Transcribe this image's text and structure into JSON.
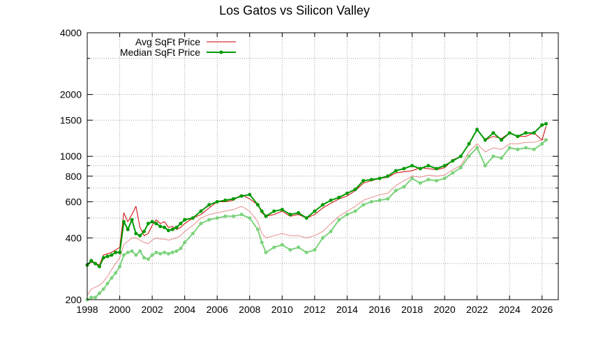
{
  "chart_data": {
    "type": "line",
    "title": "Los Gatos vs Silicon Valley",
    "xlabel": "",
    "ylabel": "",
    "x_range": [
      1998,
      2027
    ],
    "ylim": [
      200,
      4000
    ],
    "y_scale": "log",
    "grid": true,
    "legend_position": "top-left",
    "x_ticks": [
      "1998",
      "2000",
      "2002",
      "2004",
      "2006",
      "2008",
      "2010",
      "2012",
      "2014",
      "2016",
      "2018",
      "2020",
      "2022",
      "2024",
      "2026"
    ],
    "y_ticks": [
      "200",
      "400",
      "600",
      "800",
      "1000",
      "1500",
      "2000",
      "4000"
    ],
    "y_tick_values": [
      200,
      400,
      600,
      800,
      1000,
      1500,
      2000,
      4000
    ],
    "y_minor_ticks": [
      300,
      500,
      700,
      900,
      3000
    ],
    "series": [
      {
        "name": "Avg SqFt Price",
        "group": "Los Gatos",
        "color": "#cc0000",
        "marker": false,
        "x": [
          1998.0,
          1998.25,
          1998.5,
          1998.75,
          1999.0,
          1999.25,
          1999.5,
          1999.75,
          2000.0,
          2000.25,
          2000.5,
          2000.75,
          2001.0,
          2001.25,
          2001.5,
          2001.75,
          2002.0,
          2002.25,
          2002.5,
          2002.75,
          2003.0,
          2003.25,
          2003.5,
          2003.75,
          2004.0,
          2004.5,
          2005.0,
          2005.5,
          2006.0,
          2006.5,
          2007.0,
          2007.5,
          2008.0,
          2008.5,
          2008.75,
          2009.0,
          2009.5,
          2010.0,
          2010.5,
          2011.0,
          2011.5,
          2012.0,
          2012.5,
          2013.0,
          2013.5,
          2014.0,
          2014.5,
          2015.0,
          2015.5,
          2016.0,
          2016.5,
          2017.0,
          2017.5,
          2018.0,
          2018.5,
          2019.0,
          2019.5,
          2020.0,
          2020.5,
          2021.0,
          2021.5,
          2022.0,
          2022.5,
          2023.0,
          2023.5,
          2024.0,
          2024.5,
          2025.0,
          2025.5,
          2026.0,
          2026.25
        ],
        "values": [
          295,
          305,
          300,
          295,
          330,
          335,
          340,
          350,
          360,
          530,
          480,
          520,
          570,
          450,
          410,
          420,
          460,
          490,
          470,
          480,
          450,
          455,
          440,
          450,
          470,
          500,
          520,
          560,
          600,
          600,
          610,
          650,
          620,
          580,
          530,
          510,
          520,
          540,
          510,
          520,
          500,
          520,
          560,
          590,
          620,
          640,
          680,
          740,
          760,
          780,
          790,
          830,
          840,
          850,
          880,
          870,
          860,
          880,
          960,
          1000,
          1150,
          1350,
          1200,
          1250,
          1220,
          1300,
          1250,
          1250,
          1300,
          1200,
          1400
        ]
      },
      {
        "name": "Median SqFt Price",
        "group": "Los Gatos",
        "color": "#009900",
        "marker": true,
        "x": [
          1998.0,
          1998.25,
          1998.5,
          1998.75,
          1999.0,
          1999.25,
          1999.5,
          1999.75,
          2000.0,
          2000.25,
          2000.5,
          2000.75,
          2001.0,
          2001.25,
          2001.5,
          2001.75,
          2002.0,
          2002.25,
          2002.5,
          2002.75,
          2003.0,
          2003.25,
          2003.5,
          2003.75,
          2004.0,
          2004.5,
          2005.0,
          2005.5,
          2006.0,
          2006.5,
          2007.0,
          2007.5,
          2008.0,
          2008.5,
          2008.75,
          2009.0,
          2009.5,
          2010.0,
          2010.5,
          2011.0,
          2011.5,
          2012.0,
          2012.5,
          2013.0,
          2013.5,
          2014.0,
          2014.5,
          2015.0,
          2015.5,
          2016.0,
          2016.5,
          2017.0,
          2017.5,
          2018.0,
          2018.5,
          2019.0,
          2019.5,
          2020.0,
          2020.5,
          2021.0,
          2021.5,
          2022.0,
          2022.5,
          2023.0,
          2023.5,
          2024.0,
          2024.5,
          2025.0,
          2025.5,
          2026.0,
          2026.25
        ],
        "values": [
          295,
          310,
          300,
          290,
          320,
          325,
          330,
          340,
          340,
          480,
          440,
          490,
          420,
          410,
          430,
          470,
          480,
          470,
          455,
          450,
          435,
          440,
          450,
          470,
          490,
          500,
          540,
          580,
          600,
          610,
          620,
          640,
          650,
          580,
          540,
          510,
          540,
          550,
          520,
          530,
          500,
          540,
          580,
          610,
          630,
          660,
          690,
          760,
          770,
          780,
          800,
          850,
          870,
          900,
          870,
          900,
          870,
          900,
          950,
          1000,
          1150,
          1350,
          1200,
          1300,
          1200,
          1300,
          1250,
          1300,
          1300,
          1420,
          1440
        ]
      },
      {
        "name": "",
        "group": "Silicon Valley",
        "color": "#cc0000",
        "opacity": 0.45,
        "marker": false,
        "x": [
          1998.0,
          1998.25,
          1998.5,
          1998.75,
          1999.0,
          1999.25,
          1999.5,
          1999.75,
          2000.0,
          2000.25,
          2000.5,
          2000.75,
          2001.0,
          2001.25,
          2001.5,
          2001.75,
          2002.0,
          2002.25,
          2002.5,
          2002.75,
          2003.0,
          2003.25,
          2003.5,
          2003.75,
          2004.0,
          2004.5,
          2005.0,
          2005.5,
          2006.0,
          2006.5,
          2007.0,
          2007.5,
          2008.0,
          2008.5,
          2008.75,
          2009.0,
          2009.5,
          2010.0,
          2010.5,
          2011.0,
          2011.5,
          2012.0,
          2012.5,
          2013.0,
          2013.5,
          2014.0,
          2014.5,
          2015.0,
          2015.5,
          2016.0,
          2016.5,
          2017.0,
          2017.5,
          2018.0,
          2018.5,
          2019.0,
          2019.5,
          2020.0,
          2020.5,
          2021.0,
          2021.5,
          2022.0,
          2022.5,
          2023.0,
          2023.5,
          2024.0,
          2024.5,
          2025.0,
          2025.5,
          2026.0,
          2026.25
        ],
        "values": [
          210,
          225,
          230,
          235,
          245,
          260,
          280,
          300,
          320,
          370,
          385,
          400,
          400,
          390,
          380,
          375,
          390,
          400,
          395,
          395,
          390,
          395,
          400,
          410,
          430,
          460,
          500,
          520,
          530,
          540,
          550,
          570,
          540,
          480,
          420,
          400,
          410,
          420,
          410,
          410,
          400,
          410,
          430,
          470,
          510,
          540,
          570,
          610,
          630,
          650,
          660,
          720,
          760,
          800,
          790,
          810,
          800,
          810,
          860,
          900,
          1050,
          1150,
          1050,
          1100,
          1080,
          1150,
          1150,
          1170,
          1170,
          1200,
          1220
        ]
      },
      {
        "name": "",
        "group": "Silicon Valley",
        "color": "#66cc66",
        "opacity": 0.85,
        "marker": true,
        "x": [
          1998.0,
          1998.25,
          1998.5,
          1998.75,
          1999.0,
          1999.25,
          1999.5,
          1999.75,
          2000.0,
          2000.25,
          2000.5,
          2000.75,
          2001.0,
          2001.25,
          2001.5,
          2001.75,
          2002.0,
          2002.25,
          2002.5,
          2002.75,
          2003.0,
          2003.25,
          2003.5,
          2003.75,
          2004.0,
          2004.5,
          2005.0,
          2005.5,
          2006.0,
          2006.5,
          2007.0,
          2007.5,
          2008.0,
          2008.5,
          2008.75,
          2009.0,
          2009.5,
          2010.0,
          2010.5,
          2011.0,
          2011.5,
          2012.0,
          2012.5,
          2013.0,
          2013.5,
          2014.0,
          2014.5,
          2015.0,
          2015.5,
          2016.0,
          2016.5,
          2017.0,
          2017.5,
          2018.0,
          2018.5,
          2019.0,
          2019.5,
          2020.0,
          2020.5,
          2021.0,
          2021.5,
          2022.0,
          2022.5,
          2023.0,
          2023.5,
          2024.0,
          2024.5,
          2025.0,
          2025.5,
          2026.0,
          2026.25
        ],
        "values": [
          200,
          205,
          205,
          215,
          225,
          240,
          255,
          270,
          290,
          330,
          340,
          345,
          330,
          345,
          320,
          315,
          330,
          340,
          335,
          340,
          335,
          340,
          345,
          355,
          380,
          420,
          470,
          490,
          500,
          510,
          510,
          520,
          500,
          440,
          380,
          340,
          360,
          370,
          350,
          360,
          340,
          350,
          400,
          430,
          490,
          520,
          540,
          580,
          600,
          610,
          620,
          680,
          710,
          780,
          740,
          770,
          760,
          780,
          830,
          880,
          1000,
          1100,
          900,
          1000,
          980,
          1100,
          1080,
          1100,
          1080,
          1150,
          1200
        ]
      }
    ]
  }
}
